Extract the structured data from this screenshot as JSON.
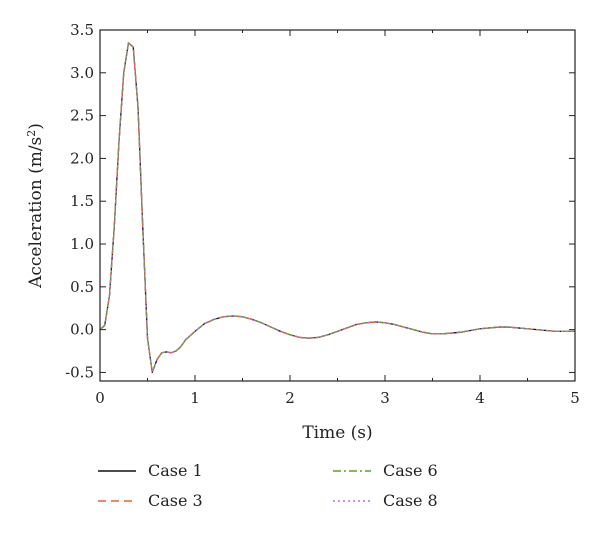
{
  "chart_data": {
    "type": "line",
    "xlabel": "Time (s)",
    "ylabel_main": "Acceleration (m/s",
    "ylabel_sup": "2",
    "ylabel_close": ")",
    "xlim": [
      0,
      5
    ],
    "ylim": [
      -0.6,
      3.5
    ],
    "xticks": [
      0,
      1,
      2,
      3,
      4,
      5
    ],
    "yticks": [
      -0.5,
      0.0,
      0.5,
      1.0,
      1.5,
      2.0,
      2.5,
      3.0,
      3.5
    ],
    "xtick_labels": [
      "0",
      "1",
      "2",
      "3",
      "4",
      "5"
    ],
    "ytick_labels": [
      "-0.5",
      "0.0",
      "0.5",
      "1.0",
      "1.5",
      "2.0",
      "2.5",
      "3.0",
      "3.5"
    ],
    "grid": false,
    "legend_position": "bottom",
    "x": [
      0,
      0.05,
      0.1,
      0.15,
      0.2,
      0.25,
      0.3,
      0.35,
      0.4,
      0.45,
      0.5,
      0.55,
      0.6,
      0.65,
      0.7,
      0.75,
      0.8,
      0.85,
      0.9,
      1.0,
      1.1,
      1.2,
      1.3,
      1.4,
      1.5,
      1.6,
      1.7,
      1.8,
      1.9,
      2.0,
      2.1,
      2.2,
      2.3,
      2.4,
      2.5,
      2.6,
      2.7,
      2.8,
      2.9,
      3.0,
      3.1,
      3.2,
      3.3,
      3.4,
      3.5,
      3.6,
      3.7,
      3.8,
      3.9,
      4.0,
      4.1,
      4.2,
      4.3,
      4.4,
      4.5,
      4.6,
      4.7,
      4.8,
      4.9,
      5.0
    ],
    "series": [
      {
        "name": "Case 1",
        "color": "#111111",
        "dash": "solid",
        "values": [
          0.0,
          0.05,
          0.4,
          1.2,
          2.2,
          3.0,
          3.35,
          3.3,
          2.6,
          1.2,
          -0.1,
          -0.5,
          -0.35,
          -0.27,
          -0.26,
          -0.27,
          -0.25,
          -0.2,
          -0.12,
          -0.02,
          0.07,
          0.12,
          0.15,
          0.16,
          0.15,
          0.12,
          0.08,
          0.03,
          -0.02,
          -0.06,
          -0.09,
          -0.1,
          -0.09,
          -0.06,
          -0.02,
          0.02,
          0.06,
          0.08,
          0.09,
          0.08,
          0.06,
          0.03,
          0.0,
          -0.03,
          -0.05,
          -0.05,
          -0.04,
          -0.03,
          -0.01,
          0.01,
          0.02,
          0.03,
          0.03,
          0.02,
          0.01,
          0.0,
          -0.01,
          -0.02,
          -0.02,
          -0.02
        ]
      },
      {
        "name": "Case 3",
        "color": "#e8632b",
        "dash": "8,5",
        "values": [
          0.0,
          0.05,
          0.4,
          1.2,
          2.2,
          3.0,
          3.35,
          3.3,
          2.6,
          1.2,
          -0.1,
          -0.5,
          -0.35,
          -0.27,
          -0.26,
          -0.27,
          -0.25,
          -0.2,
          -0.12,
          -0.02,
          0.07,
          0.12,
          0.15,
          0.16,
          0.15,
          0.12,
          0.08,
          0.03,
          -0.02,
          -0.06,
          -0.09,
          -0.1,
          -0.09,
          -0.06,
          -0.02,
          0.02,
          0.06,
          0.08,
          0.09,
          0.08,
          0.06,
          0.03,
          0.0,
          -0.03,
          -0.05,
          -0.05,
          -0.04,
          -0.03,
          -0.01,
          0.01,
          0.02,
          0.03,
          0.03,
          0.02,
          0.01,
          0.0,
          -0.01,
          -0.02,
          -0.02,
          -0.02
        ]
      },
      {
        "name": "Case 6",
        "color": "#5aa02c",
        "dash": "8,3,2,3",
        "values": [
          0.0,
          0.05,
          0.4,
          1.2,
          2.2,
          3.0,
          3.35,
          3.3,
          2.6,
          1.2,
          -0.1,
          -0.5,
          -0.35,
          -0.27,
          -0.26,
          -0.27,
          -0.25,
          -0.2,
          -0.12,
          -0.02,
          0.07,
          0.12,
          0.15,
          0.16,
          0.15,
          0.12,
          0.08,
          0.03,
          -0.02,
          -0.06,
          -0.09,
          -0.1,
          -0.09,
          -0.06,
          -0.02,
          0.02,
          0.06,
          0.08,
          0.09,
          0.08,
          0.06,
          0.03,
          0.0,
          -0.03,
          -0.05,
          -0.05,
          -0.04,
          -0.03,
          -0.01,
          0.01,
          0.02,
          0.03,
          0.03,
          0.02,
          0.01,
          0.0,
          -0.01,
          -0.02,
          -0.02,
          -0.02
        ]
      },
      {
        "name": "Case 8",
        "color": "#c06fd6",
        "dash": "2,3",
        "values": [
          0.0,
          0.05,
          0.4,
          1.2,
          2.2,
          3.0,
          3.35,
          3.3,
          2.6,
          1.2,
          -0.1,
          -0.5,
          -0.35,
          -0.27,
          -0.26,
          -0.27,
          -0.25,
          -0.2,
          -0.12,
          -0.02,
          0.07,
          0.12,
          0.15,
          0.16,
          0.15,
          0.12,
          0.08,
          0.03,
          -0.02,
          -0.06,
          -0.09,
          -0.1,
          -0.09,
          -0.06,
          -0.02,
          0.02,
          0.06,
          0.08,
          0.09,
          0.08,
          0.06,
          0.03,
          0.0,
          -0.03,
          -0.05,
          -0.05,
          -0.04,
          -0.03,
          -0.01,
          0.01,
          0.02,
          0.03,
          0.03,
          0.02,
          0.01,
          0.0,
          -0.01,
          -0.02,
          -0.02,
          -0.02
        ]
      }
    ]
  }
}
